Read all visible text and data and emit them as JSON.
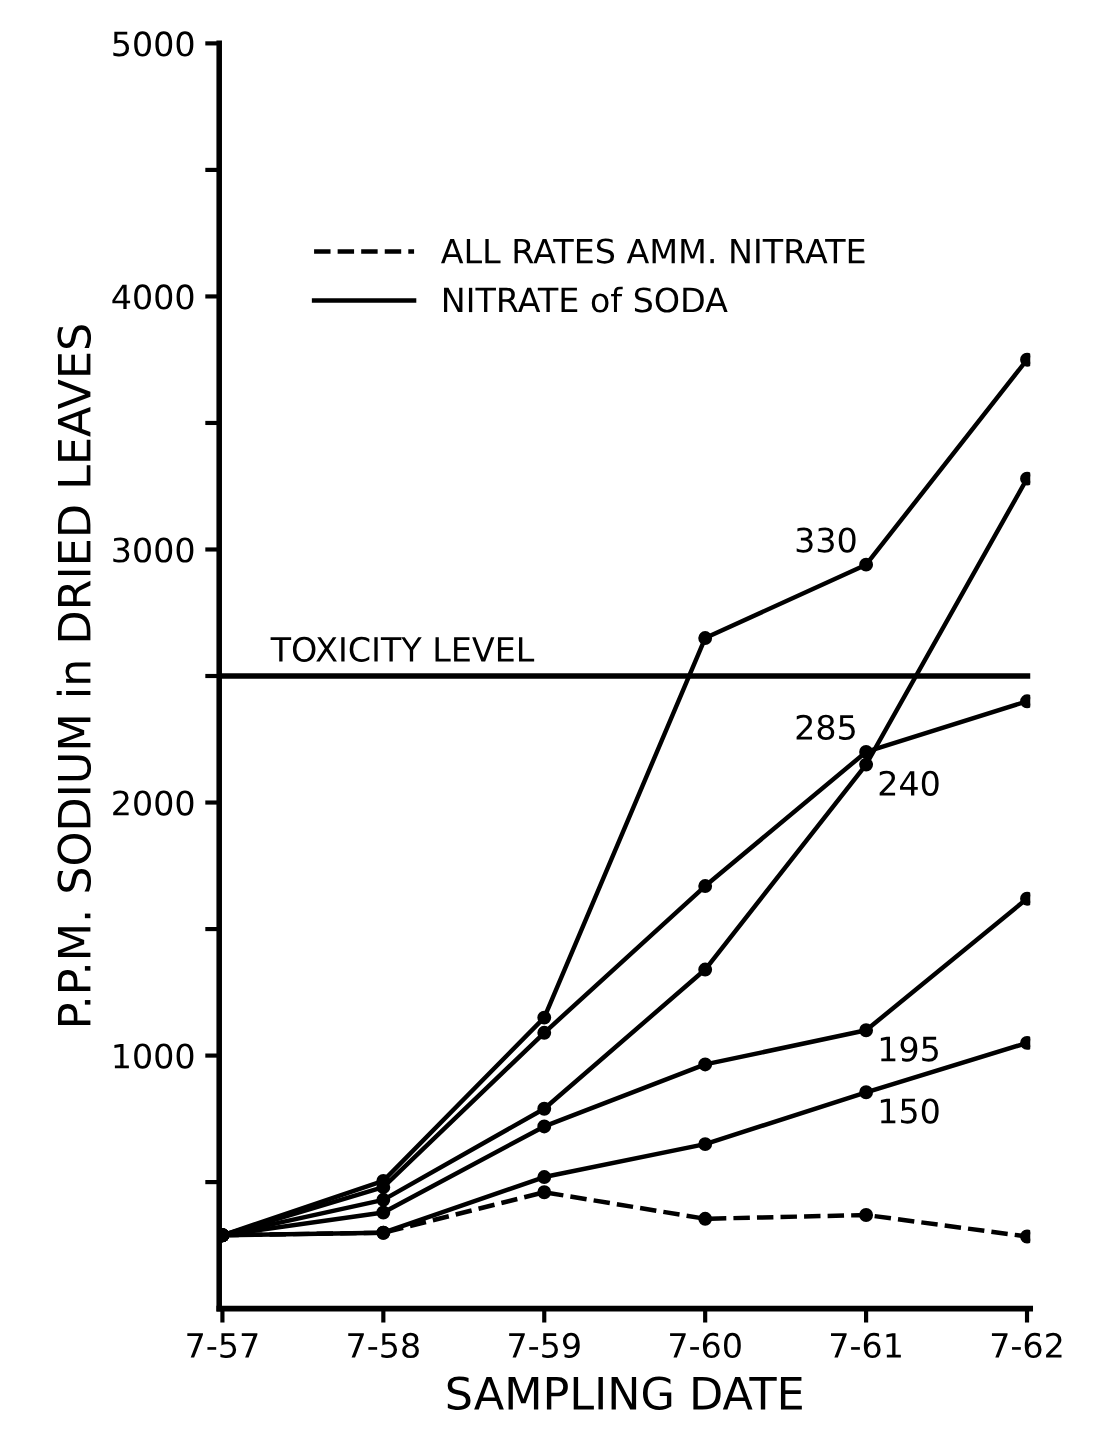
{
  "chart_data": {
    "type": "line",
    "xlabel": "SAMPLING DATE",
    "ylabel": "P.P.M. SODIUM in DRIED LEAVES",
    "categories": [
      "7-57",
      "7-58",
      "7-59",
      "7-60",
      "7-61",
      "7-62"
    ],
    "ylim": [
      0,
      5000
    ],
    "yticks": [
      {
        "value": 500,
        "label": null
      },
      1000,
      {
        "value": 1500,
        "label": null
      },
      2000,
      {
        "value": 2500,
        "label": null
      },
      3000,
      {
        "value": 3500,
        "label": null
      },
      4000,
      {
        "value": 4500,
        "label": null
      },
      5000
    ],
    "marker": "circle",
    "grid": false,
    "annotations": [
      "ALL RATES AMM. NITRATE",
      "NITRATE of SODA"
    ],
    "ref_lines": [
      {
        "axis": "y",
        "value": 2500,
        "label": "TOXICITY LEVEL",
        "color": "#000000"
      }
    ],
    "series": [
      {
        "name": "330",
        "color": "#000000",
        "line_style": "solid",
        "values": [
          290,
          505,
          1150,
          2650,
          2940,
          3750
        ]
      },
      {
        "name": "285",
        "color": "#000000",
        "line_style": "solid",
        "values": [
          290,
          480,
          1090,
          1670,
          2200,
          2400
        ]
      },
      {
        "name": "240",
        "color": "#000000",
        "line_style": "solid",
        "values": [
          290,
          430,
          790,
          1340,
          2150,
          3280
        ]
      },
      {
        "name": "195",
        "color": "#000000",
        "line_style": "solid",
        "values": [
          290,
          380,
          720,
          965,
          1100,
          1620
        ]
      },
      {
        "name": "150",
        "color": "#000000",
        "line_style": "solid",
        "values": [
          290,
          300,
          520,
          650,
          855,
          1050
        ]
      },
      {
        "color": "#000000",
        "line_style": "dashed",
        "values": [
          290,
          300,
          460,
          355,
          370,
          285
        ]
      }
    ]
  }
}
